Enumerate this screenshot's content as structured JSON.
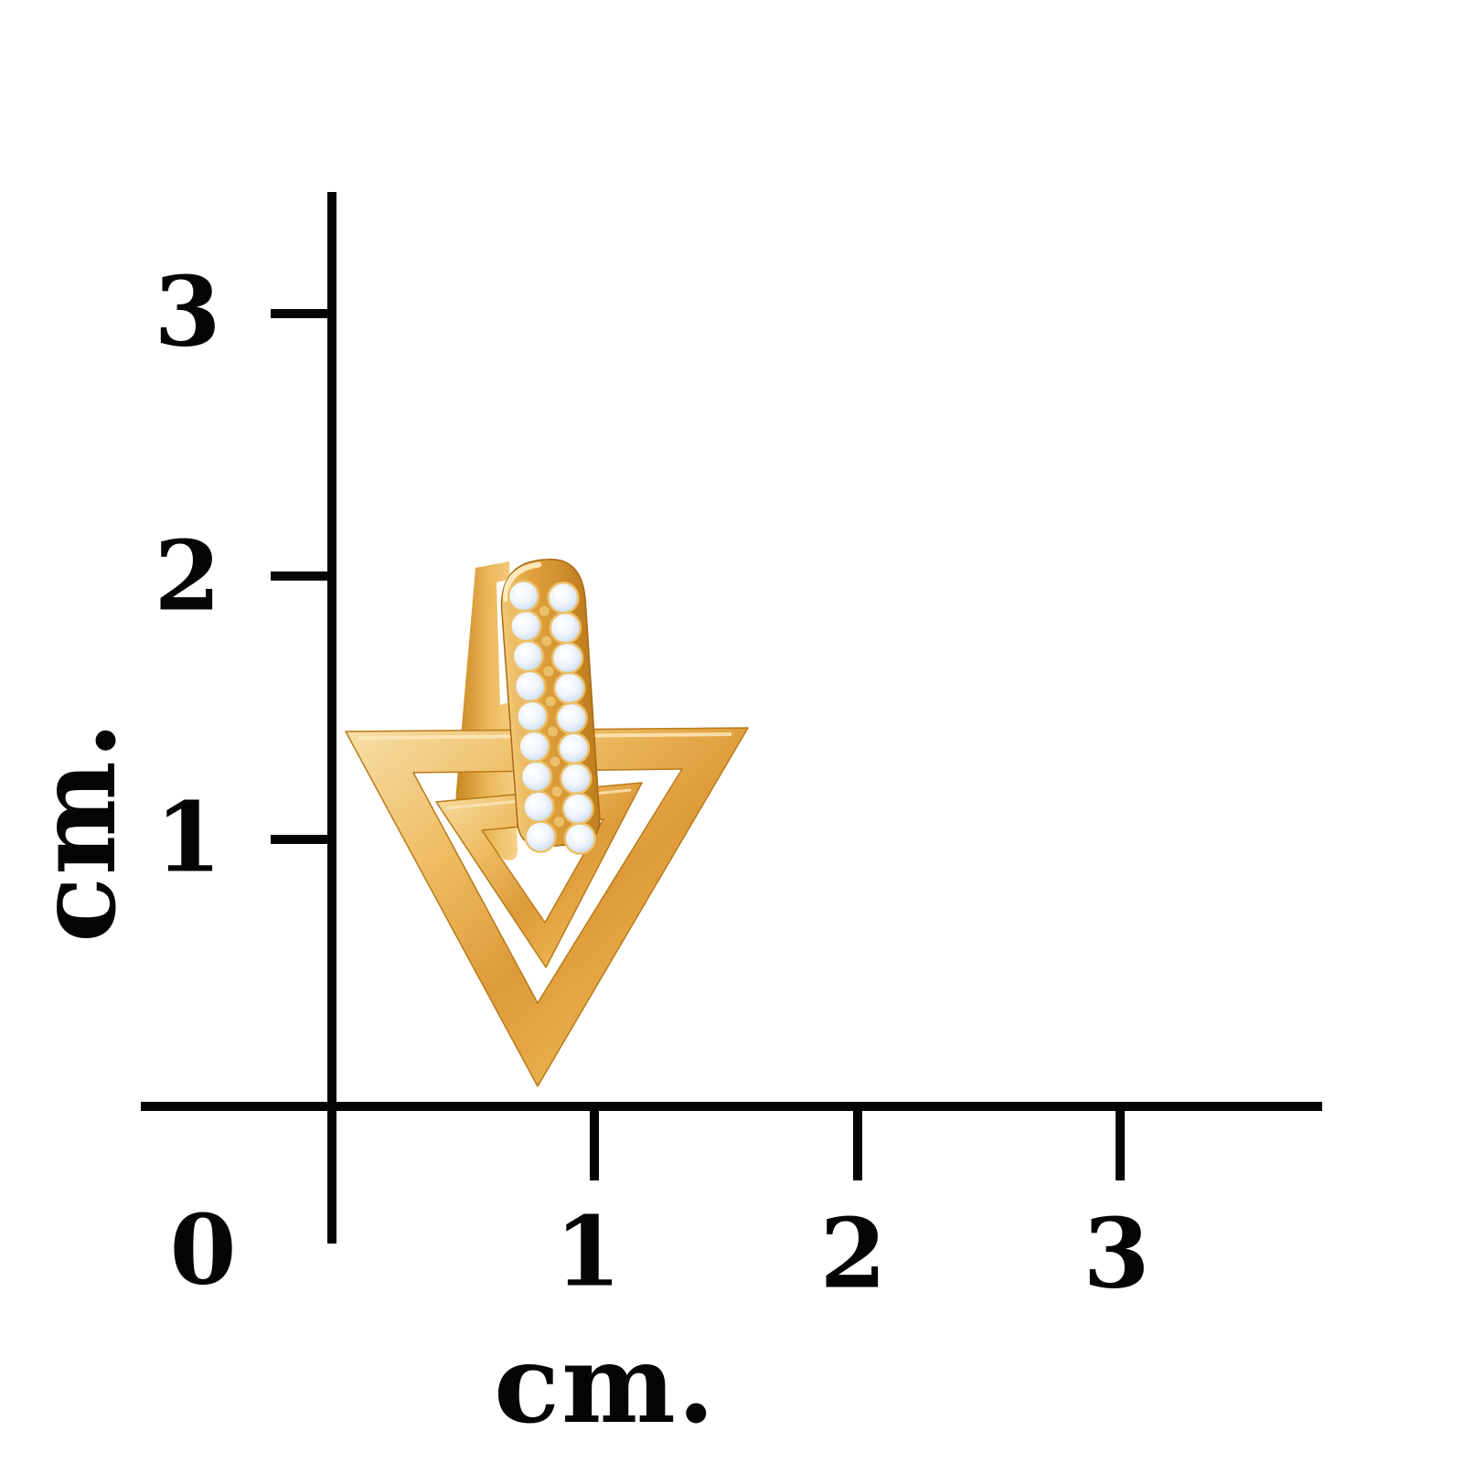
{
  "image": {
    "type": "jewelry product photo with centimeter scale",
    "background": "#ffffff",
    "axis_color": "#050505"
  },
  "scale": {
    "y_axis": {
      "unit": "cm.",
      "ticks": [
        "3",
        "2",
        "1"
      ]
    },
    "x_axis": {
      "unit": "cm.",
      "ticks": [
        "0",
        "1",
        "2",
        "3"
      ]
    }
  },
  "earring": {
    "description": "Gold-tone earring: two nested open triangle outlines pointing down, hung from a crystal pave huggie hoop",
    "colors": {
      "gold": "#e2a33e",
      "gold_light": "#f8dfa8",
      "gold_mid": "#dd9a38",
      "gold_dark": "#bd7d1d",
      "hinge_light": "#f7d389",
      "hinge_dark": "#c8871f",
      "crystal": "#f0f5fc",
      "crystal_shadow": "#aec4de",
      "prong_gold": "#ecc06a"
    },
    "pave": {
      "rows": 9,
      "columns": 2
    }
  }
}
